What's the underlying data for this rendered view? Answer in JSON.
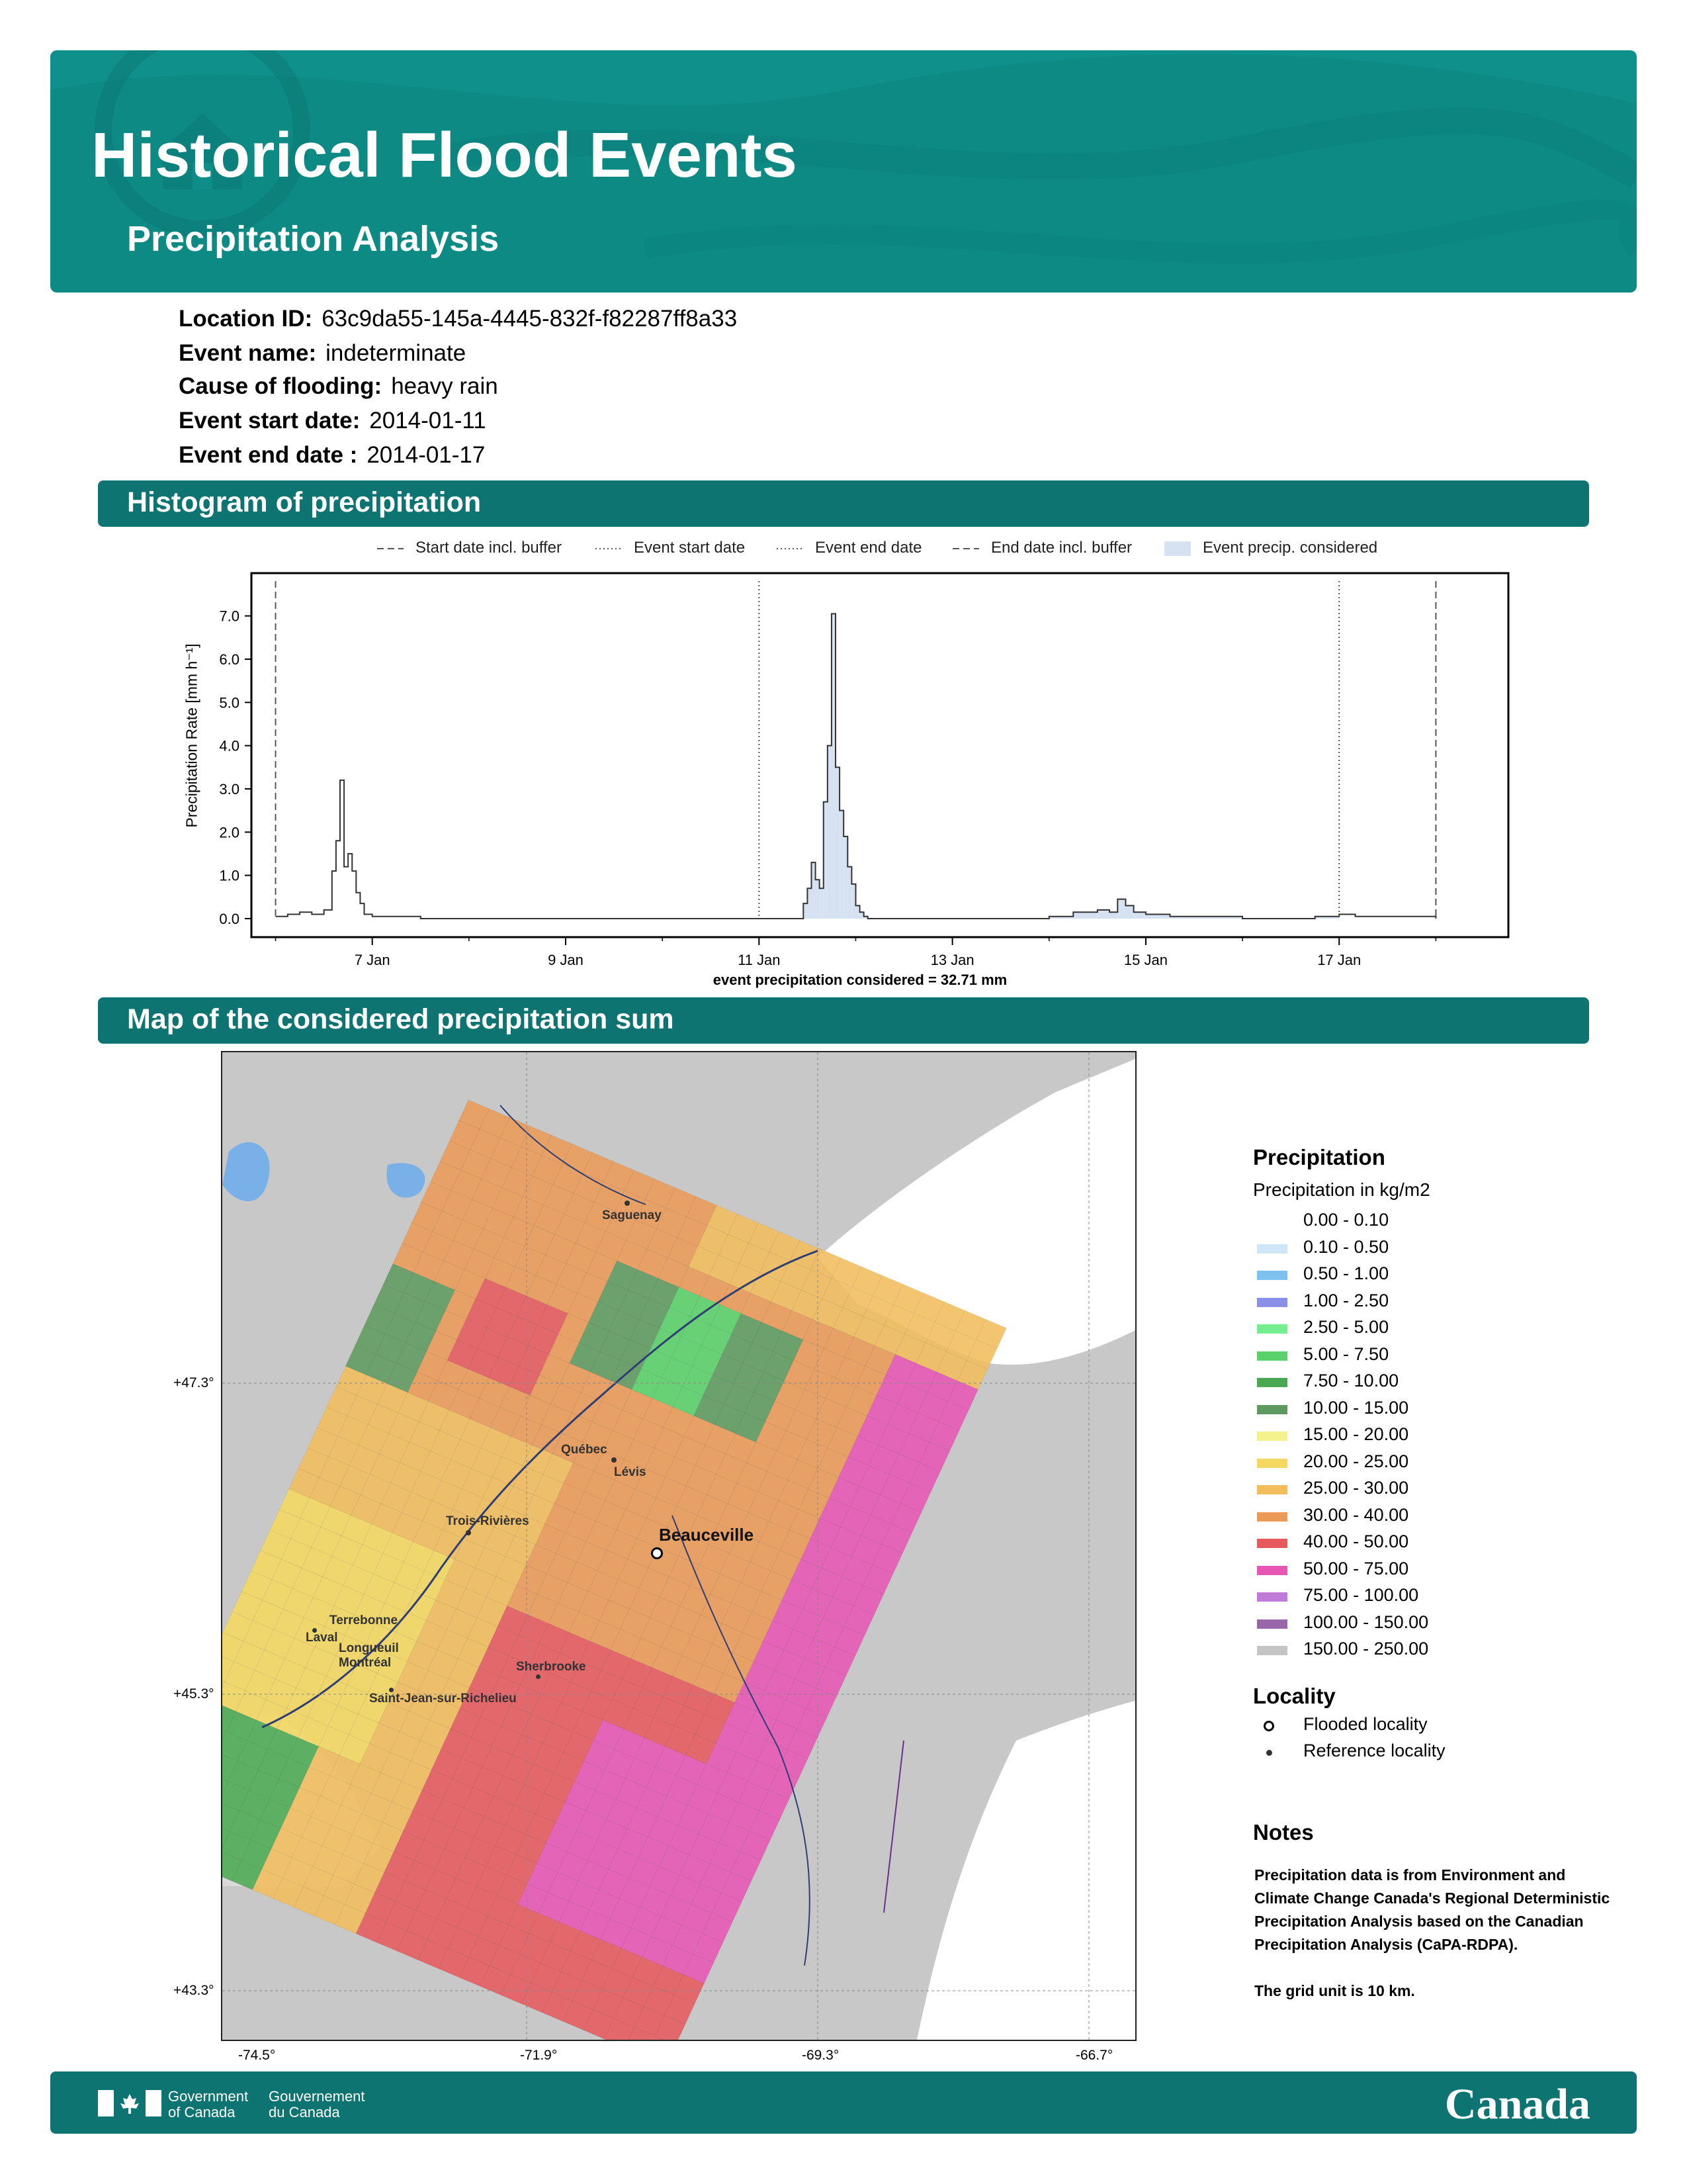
{
  "header": {
    "title": "Historical Flood Events",
    "subtitle": "Precipitation Analysis",
    "bg_color": "#0e8a85"
  },
  "event": {
    "location_id_label": "Location ID:",
    "location_id": "63c9da55-145a-4445-832f-f82287ff8a33",
    "event_name_label": "Event name:",
    "event_name": "indeterminate",
    "cause_label": "Cause of flooding:",
    "cause": "heavy rain",
    "start_label": "Event start date:",
    "start": "2014-01-11",
    "end_label": "Event end date :",
    "end": "2014-01-17"
  },
  "sections": {
    "histogram": "Histogram of precipitation",
    "map": "Map of the considered precipitation sum"
  },
  "chart_data": {
    "type": "bar",
    "ylabel": "Precipitation Rate [mm h⁻¹]",
    "ylim": [
      0,
      7.5
    ],
    "y_ticks": [
      "0.0",
      "1.0",
      "2.0",
      "3.0",
      "4.0",
      "5.0",
      "6.0",
      "7.0"
    ],
    "x_ticks": [
      "7 Jan",
      "9 Jan",
      "11 Jan",
      "13 Jan",
      "15 Jan",
      "17 Jan"
    ],
    "xlim": [
      "2014-01-05 18:00",
      "2014-01-18 18:00"
    ],
    "legend": {
      "start_buffer": "Start date incl. buffer",
      "event_start": "Event start date",
      "event_end": "Event end date",
      "end_buffer": "End date incl. buffer",
      "considered": "Event precip. considered"
    },
    "markers": {
      "start_buffer": "2014-01-06 00:00",
      "event_start": "2014-01-11 00:00",
      "event_end": "2014-01-17 00:00",
      "end_buffer": "2014-01-18 00:00"
    },
    "footnote": "event precipitation considered = 32.71 mm",
    "series": [
      {
        "x": [
          "2014-01-06 00:00",
          "2014-01-06 03:00",
          "2014-01-06 06:00",
          "2014-01-06 09:00",
          "2014-01-06 12:00",
          "2014-01-06 14:00",
          "2014-01-06 15:00",
          "2014-01-06 16:00",
          "2014-01-06 17:00",
          "2014-01-06 18:00",
          "2014-01-06 19:00",
          "2014-01-06 20:00",
          "2014-01-06 21:00",
          "2014-01-06 22:00",
          "2014-01-07 00:00",
          "2014-01-07 02:00",
          "2014-01-07 06:00",
          "2014-01-07 12:00",
          "2014-01-08 00:00",
          "2014-01-09 00:00",
          "2014-01-10 00:00",
          "2014-01-11 00:00",
          "2014-01-11 08:00",
          "2014-01-11 11:00",
          "2014-01-11 12:00",
          "2014-01-11 13:00",
          "2014-01-11 14:00",
          "2014-01-11 15:00",
          "2014-01-11 16:00",
          "2014-01-11 17:00",
          "2014-01-11 18:00",
          "2014-01-11 19:00",
          "2014-01-11 20:00",
          "2014-01-11 21:00",
          "2014-01-11 22:00",
          "2014-01-11 23:00",
          "2014-01-12 00:00",
          "2014-01-12 01:00",
          "2014-01-12 02:00",
          "2014-01-12 03:00",
          "2014-01-12 05:00",
          "2014-01-12 07:00",
          "2014-01-12 10:00",
          "2014-01-13 00:00",
          "2014-01-14 00:00",
          "2014-01-14 06:00",
          "2014-01-14 12:00",
          "2014-01-14 15:00",
          "2014-01-14 17:00",
          "2014-01-14 19:00",
          "2014-01-14 21:00",
          "2014-01-15 00:00",
          "2014-01-15 06:00",
          "2014-01-16 00:00",
          "2014-01-16 18:00",
          "2014-01-17 00:00",
          "2014-01-17 04:00",
          "2014-01-17 12:00",
          "2014-01-18 00:00"
        ],
        "values": [
          0.05,
          0.1,
          0.15,
          0.1,
          0.2,
          1.1,
          1.8,
          3.2,
          1.2,
          1.5,
          1.1,
          0.6,
          0.35,
          0.1,
          0.05,
          0.05,
          0.05,
          0.0,
          0.0,
          0.0,
          0.0,
          0.0,
          0.0,
          0.35,
          0.7,
          1.3,
          0.9,
          0.7,
          2.7,
          4.0,
          7.05,
          3.5,
          2.5,
          1.9,
          1.2,
          0.8,
          0.3,
          0.15,
          0.05,
          0.0,
          0.0,
          0.0,
          0.0,
          0.0,
          0.05,
          0.15,
          0.2,
          0.15,
          0.45,
          0.3,
          0.15,
          0.1,
          0.05,
          0.0,
          0.05,
          0.1,
          0.05,
          0.05,
          0.0
        ]
      }
    ]
  },
  "map": {
    "lat_ticks": [
      "+47.3°",
      "+45.3°",
      "+43.3°"
    ],
    "lon_ticks": [
      "-74.5°",
      "-71.9°",
      "-69.3°",
      "-66.7°"
    ],
    "cities": [
      {
        "name": "Saguenay"
      },
      {
        "name": "Québec"
      },
      {
        "name": "Lévis"
      },
      {
        "name": "Trois-Rivières"
      },
      {
        "name": "Terrebonne"
      },
      {
        "name": "Laval"
      },
      {
        "name": "Longueuil"
      },
      {
        "name": "Montréal"
      },
      {
        "name": "Sherbrooke"
      },
      {
        "name": "Saint-Jean-sur-Richelieu"
      }
    ],
    "flooded": "Beauceville",
    "land_color": "#c8c8c8",
    "water_color": "#ffffff",
    "lake_color": "#7ab0e8"
  },
  "map_legend": {
    "title": "Precipitation",
    "subtitle": "Precipitation in kg/m2",
    "classes": [
      {
        "label": "0.00 - 0.10",
        "color": "#ffffff"
      },
      {
        "label": "0.10 - 0.50",
        "color": "#cfe6f7"
      },
      {
        "label": "0.50 - 1.00",
        "color": "#7fc1ee"
      },
      {
        "label": "1.00 - 2.50",
        "color": "#8a90e8"
      },
      {
        "label": "2.50 - 5.00",
        "color": "#76ee8f"
      },
      {
        "label": "5.00 - 7.50",
        "color": "#5ad16a"
      },
      {
        "label": "7.50 - 10.00",
        "color": "#4aa852"
      },
      {
        "label": "10.00 - 15.00",
        "color": "#5e9a5f"
      },
      {
        "label": "15.00 - 20.00",
        "color": "#f3f28c"
      },
      {
        "label": "20.00 - 25.00",
        "color": "#f4d861"
      },
      {
        "label": "25.00 - 30.00",
        "color": "#f3bd5c"
      },
      {
        "label": "30.00 - 40.00",
        "color": "#eb9a58"
      },
      {
        "label": "40.00 - 50.00",
        "color": "#e65a5e"
      },
      {
        "label": "50.00 - 75.00",
        "color": "#e755b5"
      },
      {
        "label": "75.00 - 100.00",
        "color": "#c07ad8"
      },
      {
        "label": "100.00 - 150.00",
        "color": "#9a66aa"
      },
      {
        "label": "150.00 - 250.00",
        "color": "#c4c4c4"
      }
    ],
    "locality_title": "Locality",
    "flooded_label": "Flooded locality",
    "reference_label": "Reference locality",
    "notes_title": "Notes",
    "notes_1": "Precipitation data is from Environment and Climate Change Canada's Regional Deterministic Precipitation Analysis based on the Canadian Precipitation Analysis (CaPA-RDPA).",
    "notes_2": "The grid unit is 10 km."
  },
  "footer": {
    "gov_en_1": "Government",
    "gov_en_2": "of Canada",
    "gov_fr_1": "Gouvernement",
    "gov_fr_2": "du Canada",
    "wordmark": "Canada"
  }
}
